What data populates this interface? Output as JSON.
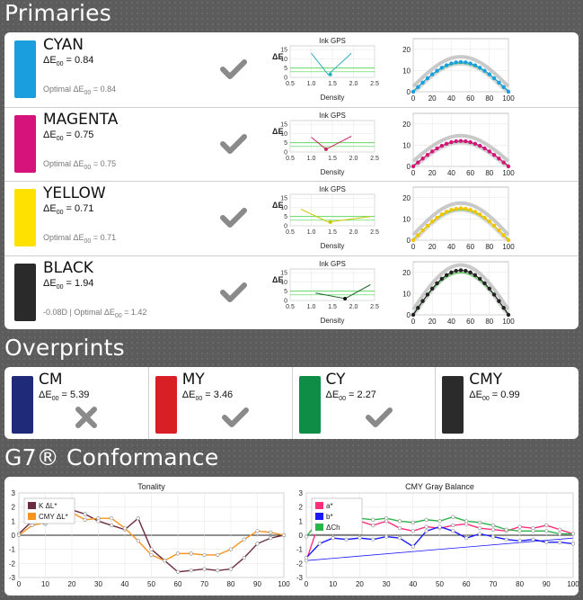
{
  "primaries": {
    "title": "Primaries",
    "rows": [
      {
        "name": "CYAN",
        "de_prefix": "ΔE",
        "de_sub": "00",
        "de_value": " = 0.84",
        "opt_prefix": "Optimal ΔE",
        "opt_sub": "00",
        "opt_value": " = 0.84",
        "color": "#1b9ede",
        "status": "pass",
        "gps": {
          "title": "Ink GPS",
          "xlabel": "Density",
          "ylabel": "ΔE",
          "line_color": "#2bb0c0"
        },
        "profile_color": "#1b9ede"
      },
      {
        "name": "MAGENTA",
        "de_prefix": "ΔE",
        "de_sub": "00",
        "de_value": " = 0.75",
        "opt_prefix": "Optimal ΔE",
        "opt_sub": "00",
        "opt_value": " = 0.75",
        "color": "#d6127b",
        "status": "pass",
        "gps": {
          "title": "Ink GPS",
          "xlabel": "Density",
          "ylabel": "ΔE",
          "line_color": "#c42a5a"
        },
        "profile_color": "#d6127b"
      },
      {
        "name": "YELLOW",
        "de_prefix": "ΔE",
        "de_sub": "00",
        "de_value": " = 0.71",
        "opt_prefix": "Optimal ΔE",
        "opt_sub": "00",
        "opt_value": " = 0.71",
        "color": "#ffe100",
        "status": "pass",
        "gps": {
          "title": "Ink GPS",
          "xlabel": "Density",
          "ylabel": "ΔE",
          "line_color": "#c8c800"
        },
        "profile_color": "#f2c400"
      },
      {
        "name": "BLACK",
        "de_prefix": "ΔE",
        "de_sub": "00",
        "de_value": " = 1.94",
        "opt_prefix": "-0.08D | Optimal ΔE",
        "opt_sub": "00",
        "opt_value": " = 1.42",
        "color": "#2a2a2a",
        "status": "pass",
        "gps": {
          "title": "Ink GPS",
          "xlabel": "Density",
          "ylabel": "ΔE",
          "line_color": "#1f6b2e"
        },
        "profile_color": "#222222"
      }
    ],
    "gps_axis": {
      "x_ticks": [
        "0.5",
        "1.0",
        "1.5",
        "2.0",
        "2.5"
      ],
      "y_ticks": [
        "0",
        "5",
        "10",
        "15"
      ]
    },
    "profile_axis": {
      "x_ticks": [
        "0",
        "20",
        "40",
        "60",
        "80",
        "100"
      ],
      "y_ticks": [
        "0",
        "10",
        "20"
      ]
    }
  },
  "overprints": {
    "title": "Overprints",
    "items": [
      {
        "name": "CM",
        "de_prefix": "ΔE",
        "de_sub": "00",
        "de_value": " = 5.39",
        "color": "#1f2a78",
        "status": "fail"
      },
      {
        "name": "MY",
        "de_prefix": "ΔE",
        "de_sub": "00",
        "de_value": " = 3.46",
        "color": "#d81f26",
        "status": "pass"
      },
      {
        "name": "CY",
        "de_prefix": "ΔE",
        "de_sub": "00",
        "de_value": " = 2.27",
        "color": "#0f8c45",
        "status": "pass"
      },
      {
        "name": "CMY",
        "de_prefix": "ΔE",
        "de_sub": "00",
        "de_value": " = 0.99",
        "color": "#2b2b2b",
        "status": "none"
      }
    ]
  },
  "g7": {
    "title": "G7® Conformance",
    "chart_data": [
      {
        "type": "line",
        "title": "Tonality",
        "x": [
          0,
          5,
          10,
          15,
          20,
          25,
          30,
          35,
          40,
          45,
          50,
          55,
          60,
          65,
          70,
          75,
          80,
          85,
          90,
          95,
          100
        ],
        "xlim": [
          0,
          100
        ],
        "ylim": [
          -3,
          3
        ],
        "x_ticks": [
          "0",
          "10",
          "20",
          "30",
          "40",
          "50",
          "60",
          "70",
          "80",
          "90",
          "100"
        ],
        "y_ticks": [
          "3",
          "2",
          "1",
          "0",
          "-1",
          "-2",
          "-3"
        ],
        "series": [
          {
            "name": "K ΔL*",
            "color": "#6b2c3e",
            "values": [
              0.1,
              1.0,
              0.8,
              1.2,
              1.8,
              1.5,
              1.0,
              0.7,
              0.4,
              1.2,
              -1.0,
              -1.8,
              -2.6,
              -2.5,
              -2.4,
              -2.5,
              -2.4,
              -1.6,
              -0.6,
              -0.2,
              0.0
            ]
          },
          {
            "name": "CMY ΔL*",
            "color": "#f7941d",
            "values": [
              0.0,
              0.7,
              0.9,
              1.3,
              1.6,
              1.1,
              1.2,
              1.2,
              0.5,
              -0.4,
              -1.4,
              -1.8,
              -1.3,
              -1.3,
              -1.4,
              -1.4,
              -1.0,
              -0.3,
              0.3,
              0.2,
              0.0
            ]
          }
        ]
      },
      {
        "type": "line",
        "title": "CMY Gray Balance",
        "x": [
          0,
          5,
          10,
          15,
          20,
          25,
          30,
          35,
          40,
          45,
          50,
          55,
          60,
          65,
          70,
          75,
          80,
          85,
          90,
          95,
          100
        ],
        "xlim": [
          0,
          100
        ],
        "ylim": [
          -3,
          3
        ],
        "x_ticks": [
          "0",
          "10",
          "20",
          "30",
          "40",
          "50",
          "60",
          "70",
          "80",
          "90",
          "100"
        ],
        "y_ticks": [
          "3",
          "2",
          "1",
          "0",
          "-1",
          "-2",
          "-3"
        ],
        "series": [
          {
            "name": "a*",
            "color": "#ff2d7a",
            "values": [
              -1.8,
              1.0,
              1.3,
              1.2,
              1.0,
              0.7,
              1.0,
              0.5,
              0.3,
              0.6,
              0.5,
              0.7,
              0.8,
              0.5,
              0.4,
              0.3,
              0.6,
              0.5,
              0.7,
              0.4,
              0.1
            ]
          },
          {
            "name": "b*",
            "color": "#1a1aff",
            "values": [
              -1.6,
              -0.6,
              -0.2,
              -0.3,
              -0.2,
              -0.3,
              -0.1,
              -0.2,
              -0.8,
              0.3,
              0.6,
              0.3,
              -0.2,
              0.1,
              -0.1,
              -0.3,
              -0.4,
              -0.3,
              -0.5,
              -0.5,
              -0.6
            ]
          },
          {
            "name": "ΔCh",
            "color": "#2bb44a",
            "values": [
              -0.1,
              1.1,
              1.3,
              1.3,
              1.2,
              1.1,
              1.2,
              1.0,
              0.9,
              1.1,
              1.0,
              1.3,
              1.0,
              0.9,
              0.7,
              0.4,
              0.3,
              0.3,
              0.3,
              0.1,
              0.1
            ]
          }
        ]
      }
    ]
  }
}
